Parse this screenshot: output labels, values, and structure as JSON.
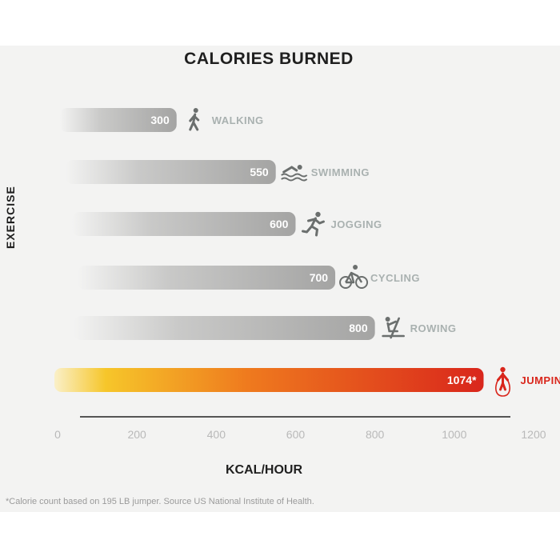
{
  "chart_data": {
    "type": "bar",
    "orientation": "horizontal",
    "title": "CALORIES BURNED",
    "xlabel": "KCAL/HOUR",
    "ylabel": "EXERCISE",
    "categories": [
      "WALKING",
      "SWIMMING",
      "JOGGING",
      "CYCLING",
      "ROWING",
      "JUMPING ROPE"
    ],
    "values": [
      300,
      550,
      600,
      700,
      800,
      1074
    ],
    "value_labels": [
      "300",
      "550",
      "600",
      "700",
      "800",
      "1074*"
    ],
    "icons": [
      "walking-icon",
      "swimming-icon",
      "running-icon",
      "bicycle-icon",
      "rowing-icon",
      "jump-rope-icon"
    ],
    "highlight_index": 5,
    "x_ticks": [
      "0",
      "200",
      "400",
      "600",
      "800",
      "1000",
      "1200"
    ],
    "xlim": [
      0,
      1200
    ],
    "grid": false,
    "footnote": "*Calorie count based on 195 LB jumper. Source US National Institute of Health.",
    "colors": {
      "bar": "#a9a9a8",
      "highlight_start": "#f6c62a",
      "highlight_end": "#d9261c",
      "highlight_text": "#d9261c",
      "category_text": "#a9b1b0",
      "tick_text": "#b9b9b9",
      "axis": "#555555"
    }
  }
}
